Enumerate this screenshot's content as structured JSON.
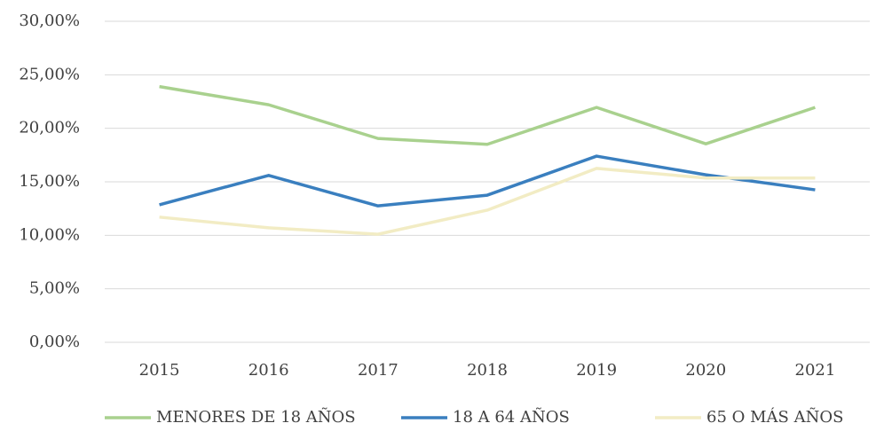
{
  "chart_data": {
    "type": "line",
    "categories": [
      "2015",
      "2016",
      "2017",
      "2018",
      "2019",
      "2020",
      "2021"
    ],
    "series": [
      {
        "name": "MENORES DE 18 AÑOS",
        "color": "#a9d18e",
        "values": [
          23.9,
          22.2,
          19.05,
          18.5,
          21.95,
          18.55,
          21.95
        ]
      },
      {
        "name": "18 A 64 AÑOS",
        "color": "#3a7fbf",
        "values": [
          12.85,
          15.6,
          12.75,
          13.75,
          17.4,
          15.65,
          14.25
        ]
      },
      {
        "name": "65 O MÁS AÑOS",
        "color": "#f2ecc4",
        "values": [
          11.7,
          10.7,
          10.1,
          12.35,
          16.25,
          15.35,
          15.35
        ]
      }
    ],
    "ylim": [
      0,
      30
    ],
    "yticks": [
      {
        "value": 0,
        "label": "0,00%"
      },
      {
        "value": 5,
        "label": "5,00%"
      },
      {
        "value": 10,
        "label": "10,00%"
      },
      {
        "value": 15,
        "label": "15,00%"
      },
      {
        "value": 20,
        "label": "20,00%"
      },
      {
        "value": 25,
        "label": "25,00%"
      },
      {
        "value": 30,
        "label": "30,00%"
      }
    ],
    "grid": true,
    "legend": "bottom"
  }
}
